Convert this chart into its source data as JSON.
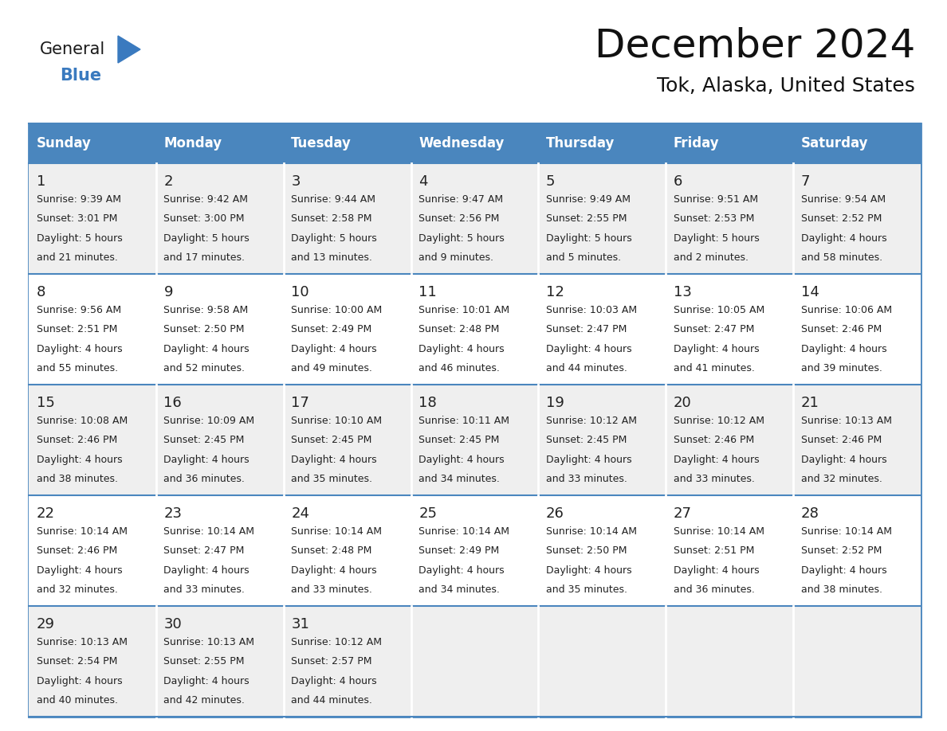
{
  "title": "December 2024",
  "subtitle": "Tok, Alaska, United States",
  "days_of_week": [
    "Sunday",
    "Monday",
    "Tuesday",
    "Wednesday",
    "Thursday",
    "Friday",
    "Saturday"
  ],
  "header_bg_color": "#4a86be",
  "header_text_color": "#ffffff",
  "row_bg_even": "#efefef",
  "row_bg_odd": "#ffffff",
  "cell_border_color": "#4a86be",
  "day_number_color": "#222222",
  "day_text_color": "#222222",
  "title_color": "#111111",
  "subtitle_color": "#111111",
  "logo_general_color": "#1a1a1a",
  "logo_blue_color": "#3a7abf",
  "calendar_data": [
    [
      {
        "day": 1,
        "sunrise": "9:39 AM",
        "sunset": "3:01 PM",
        "daylight_h": "5 hours",
        "daylight_m": "and 21 minutes."
      },
      {
        "day": 2,
        "sunrise": "9:42 AM",
        "sunset": "3:00 PM",
        "daylight_h": "5 hours",
        "daylight_m": "and 17 minutes."
      },
      {
        "day": 3,
        "sunrise": "9:44 AM",
        "sunset": "2:58 PM",
        "daylight_h": "5 hours",
        "daylight_m": "and 13 minutes."
      },
      {
        "day": 4,
        "sunrise": "9:47 AM",
        "sunset": "2:56 PM",
        "daylight_h": "5 hours",
        "daylight_m": "and 9 minutes."
      },
      {
        "day": 5,
        "sunrise": "9:49 AM",
        "sunset": "2:55 PM",
        "daylight_h": "5 hours",
        "daylight_m": "and 5 minutes."
      },
      {
        "day": 6,
        "sunrise": "9:51 AM",
        "sunset": "2:53 PM",
        "daylight_h": "5 hours",
        "daylight_m": "and 2 minutes."
      },
      {
        "day": 7,
        "sunrise": "9:54 AM",
        "sunset": "2:52 PM",
        "daylight_h": "4 hours",
        "daylight_m": "and 58 minutes."
      }
    ],
    [
      {
        "day": 8,
        "sunrise": "9:56 AM",
        "sunset": "2:51 PM",
        "daylight_h": "4 hours",
        "daylight_m": "and 55 minutes."
      },
      {
        "day": 9,
        "sunrise": "9:58 AM",
        "sunset": "2:50 PM",
        "daylight_h": "4 hours",
        "daylight_m": "and 52 minutes."
      },
      {
        "day": 10,
        "sunrise": "10:00 AM",
        "sunset": "2:49 PM",
        "daylight_h": "4 hours",
        "daylight_m": "and 49 minutes."
      },
      {
        "day": 11,
        "sunrise": "10:01 AM",
        "sunset": "2:48 PM",
        "daylight_h": "4 hours",
        "daylight_m": "and 46 minutes."
      },
      {
        "day": 12,
        "sunrise": "10:03 AM",
        "sunset": "2:47 PM",
        "daylight_h": "4 hours",
        "daylight_m": "and 44 minutes."
      },
      {
        "day": 13,
        "sunrise": "10:05 AM",
        "sunset": "2:47 PM",
        "daylight_h": "4 hours",
        "daylight_m": "and 41 minutes."
      },
      {
        "day": 14,
        "sunrise": "10:06 AM",
        "sunset": "2:46 PM",
        "daylight_h": "4 hours",
        "daylight_m": "and 39 minutes."
      }
    ],
    [
      {
        "day": 15,
        "sunrise": "10:08 AM",
        "sunset": "2:46 PM",
        "daylight_h": "4 hours",
        "daylight_m": "and 38 minutes."
      },
      {
        "day": 16,
        "sunrise": "10:09 AM",
        "sunset": "2:45 PM",
        "daylight_h": "4 hours",
        "daylight_m": "and 36 minutes."
      },
      {
        "day": 17,
        "sunrise": "10:10 AM",
        "sunset": "2:45 PM",
        "daylight_h": "4 hours",
        "daylight_m": "and 35 minutes."
      },
      {
        "day": 18,
        "sunrise": "10:11 AM",
        "sunset": "2:45 PM",
        "daylight_h": "4 hours",
        "daylight_m": "and 34 minutes."
      },
      {
        "day": 19,
        "sunrise": "10:12 AM",
        "sunset": "2:45 PM",
        "daylight_h": "4 hours",
        "daylight_m": "and 33 minutes."
      },
      {
        "day": 20,
        "sunrise": "10:12 AM",
        "sunset": "2:46 PM",
        "daylight_h": "4 hours",
        "daylight_m": "and 33 minutes."
      },
      {
        "day": 21,
        "sunrise": "10:13 AM",
        "sunset": "2:46 PM",
        "daylight_h": "4 hours",
        "daylight_m": "and 32 minutes."
      }
    ],
    [
      {
        "day": 22,
        "sunrise": "10:14 AM",
        "sunset": "2:46 PM",
        "daylight_h": "4 hours",
        "daylight_m": "and 32 minutes."
      },
      {
        "day": 23,
        "sunrise": "10:14 AM",
        "sunset": "2:47 PM",
        "daylight_h": "4 hours",
        "daylight_m": "and 33 minutes."
      },
      {
        "day": 24,
        "sunrise": "10:14 AM",
        "sunset": "2:48 PM",
        "daylight_h": "4 hours",
        "daylight_m": "and 33 minutes."
      },
      {
        "day": 25,
        "sunrise": "10:14 AM",
        "sunset": "2:49 PM",
        "daylight_h": "4 hours",
        "daylight_m": "and 34 minutes."
      },
      {
        "day": 26,
        "sunrise": "10:14 AM",
        "sunset": "2:50 PM",
        "daylight_h": "4 hours",
        "daylight_m": "and 35 minutes."
      },
      {
        "day": 27,
        "sunrise": "10:14 AM",
        "sunset": "2:51 PM",
        "daylight_h": "4 hours",
        "daylight_m": "and 36 minutes."
      },
      {
        "day": 28,
        "sunrise": "10:14 AM",
        "sunset": "2:52 PM",
        "daylight_h": "4 hours",
        "daylight_m": "and 38 minutes."
      }
    ],
    [
      {
        "day": 29,
        "sunrise": "10:13 AM",
        "sunset": "2:54 PM",
        "daylight_h": "4 hours",
        "daylight_m": "and 40 minutes."
      },
      {
        "day": 30,
        "sunrise": "10:13 AM",
        "sunset": "2:55 PM",
        "daylight_h": "4 hours",
        "daylight_m": "and 42 minutes."
      },
      {
        "day": 31,
        "sunrise": "10:12 AM",
        "sunset": "2:57 PM",
        "daylight_h": "4 hours",
        "daylight_m": "and 44 minutes."
      },
      null,
      null,
      null,
      null
    ]
  ]
}
